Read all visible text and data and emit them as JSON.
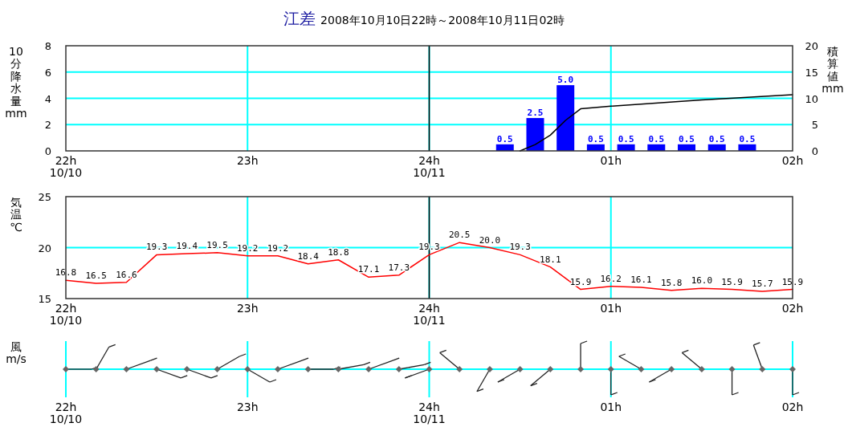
{
  "chart_data": [
    {
      "type": "bar",
      "title": "江差 2008年10月10日22時～2008年10月11日02時",
      "ylabel": "10分降水量 mm",
      "y2label": "積算値 mm",
      "x": [
        "2008-10-11T00:25",
        "2008-10-11T00:35",
        "2008-10-11T00:45",
        "2008-10-11T00:55",
        "2008-10-11T01:05",
        "2008-10-11T01:15",
        "2008-10-11T01:25",
        "2008-10-11T01:35",
        "2008-10-11T01:45"
      ],
      "series": [
        {
          "type": "bar",
          "color": "#0000ff",
          "values": [
            0.5,
            2.5,
            5.0,
            0.5,
            0.5,
            0.5,
            0.5,
            0.5,
            0.5
          ],
          "value_labels": [
            "0.5",
            "2.5",
            "5.0",
            "0.5",
            "0.5",
            "0.5",
            "0.5",
            "0.5",
            "0.5"
          ]
        },
        {
          "type": "line",
          "axis": "y2",
          "color": "#000000",
          "x": [
            "2008-10-11T00:30",
            "2008-10-11T00:35",
            "2008-10-11T00:40",
            "2008-10-11T00:45",
            "2008-10-11T00:50",
            "2008-10-11T01:00",
            "2008-10-11T01:30",
            "2008-10-11T02:00"
          ],
          "values": [
            0,
            1.2,
            3,
            5.8,
            8,
            8.5,
            9.7,
            10.7
          ]
        }
      ],
      "xlim": [
        "2008-10-10T22:00",
        "2008-10-11T02:00"
      ],
      "xticks": [
        {
          "value": "2008-10-10T22:00",
          "label": "22h\n10/10"
        },
        {
          "value": "2008-10-10T23:00",
          "label": "23h"
        },
        {
          "value": "2008-10-11T00:00",
          "label": "24h\n10/11"
        },
        {
          "value": "2008-10-11T01:00",
          "label": "01h"
        },
        {
          "value": "2008-10-11T02:00",
          "label": "02h"
        }
      ],
      "ylim": [
        0,
        8
      ],
      "yticks": [
        0,
        2,
        4,
        6,
        8
      ],
      "y2lim": [
        0,
        20
      ],
      "y2ticks": [
        0,
        5,
        10,
        15,
        20
      ],
      "grid": true,
      "ref_lines": [
        {
          "axis": "x",
          "value": "2008-10-11T00:00",
          "color": "#000000"
        }
      ]
    },
    {
      "type": "line",
      "ylabel": "気温 ℃",
      "x": [
        "2008-10-10T22:00",
        "2008-10-10T22:10",
        "2008-10-10T22:20",
        "2008-10-10T22:30",
        "2008-10-10T22:40",
        "2008-10-10T22:50",
        "2008-10-10T23:00",
        "2008-10-10T23:10",
        "2008-10-10T23:20",
        "2008-10-10T23:30",
        "2008-10-10T23:40",
        "2008-10-10T23:50",
        "2008-10-11T00:00",
        "2008-10-11T00:10",
        "2008-10-11T00:20",
        "2008-10-11T00:30",
        "2008-10-11T00:40",
        "2008-10-11T00:50",
        "2008-10-11T01:00",
        "2008-10-11T01:10",
        "2008-10-11T01:20",
        "2008-10-11T01:30",
        "2008-10-11T01:40",
        "2008-10-11T01:50",
        "2008-10-11T02:00"
      ],
      "series": [
        {
          "color": "#ff0000",
          "values": [
            16.8,
            16.5,
            16.6,
            19.3,
            19.4,
            19.5,
            19.2,
            19.2,
            18.4,
            18.8,
            17.1,
            17.3,
            19.3,
            20.5,
            20.0,
            19.3,
            18.1,
            15.9,
            16.2,
            16.1,
            15.8,
            16.0,
            15.9,
            15.7,
            15.9
          ],
          "value_labels": [
            "16.8",
            "16.5",
            "16.6",
            "19.3",
            "19.4",
            "19.5",
            "19.2",
            "19.2",
            "18.4",
            "18.8",
            "17.1",
            "17.3",
            "19.3",
            "20.5",
            "20.0",
            "19.3",
            "18.1",
            "15.9",
            "16.2",
            "16.1",
            "15.8",
            "16.0",
            "15.9",
            "15.7",
            "15.9"
          ]
        }
      ],
      "xlim": [
        "2008-10-10T22:00",
        "2008-10-11T02:00"
      ],
      "xticks": [
        {
          "value": "2008-10-10T22:00",
          "label": "22h\n10/10"
        },
        {
          "value": "2008-10-10T23:00",
          "label": "23h"
        },
        {
          "value": "2008-10-11T00:00",
          "label": "24h\n10/11"
        },
        {
          "value": "2008-10-11T01:00",
          "label": "01h"
        },
        {
          "value": "2008-10-11T02:00",
          "label": "02h"
        }
      ],
      "ylim": [
        15,
        25
      ],
      "yticks": [
        15,
        20,
        25
      ],
      "grid": true,
      "ref_lines": [
        {
          "axis": "x",
          "value": "2008-10-11T00:00",
          "color": "#000000"
        }
      ]
    },
    {
      "type": "other",
      "ylabel": "風 m/s",
      "annotations": [
        "22h\n10/10",
        "23h",
        "24h\n10/11",
        "01h",
        "02h"
      ]
    }
  ]
}
